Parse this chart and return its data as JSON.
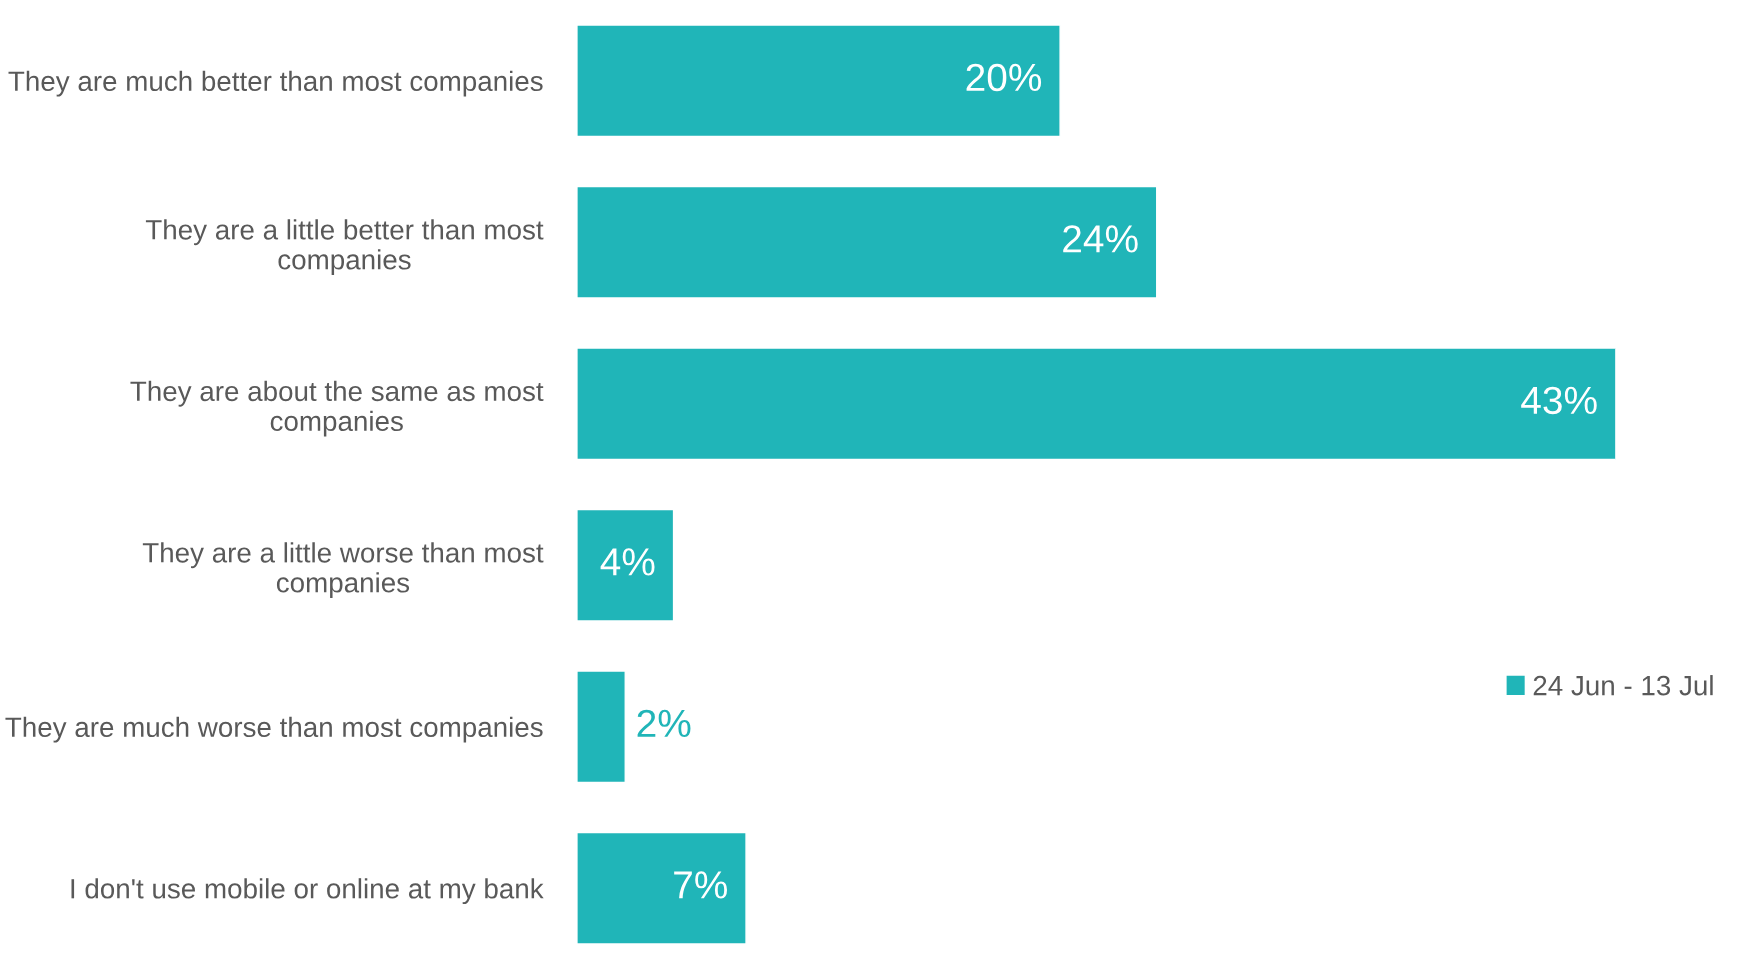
{
  "chart_data": {
    "type": "bar",
    "orientation": "horizontal",
    "categories": [
      "They are much better than most companies",
      "They are a little better than most companies",
      "They are about the same as most companies",
      "They are a little worse than most companies",
      "They are much worse than most companies",
      "I don't use mobile or online at my bank"
    ],
    "series": [
      {
        "name": "24 Jun - 13 Jul",
        "color": "#20b5b8",
        "values": [
          20,
          24,
          43,
          4,
          2,
          7
        ],
        "value_labels": [
          "20%",
          "24%",
          "43%",
          "4%",
          "2%",
          "7%"
        ]
      }
    ],
    "legend": "right",
    "grid": false
  }
}
